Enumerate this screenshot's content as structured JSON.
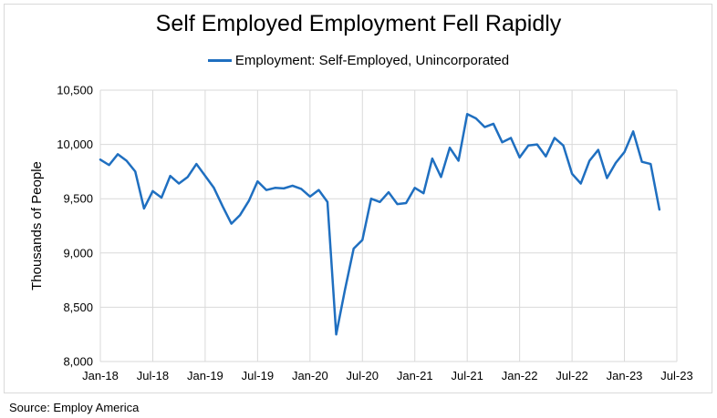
{
  "chart_data": {
    "type": "line",
    "title": "Self Employed Employment Fell Rapidly",
    "xlabel": "",
    "ylabel": "Thousands of People",
    "ylim": [
      8000,
      10500
    ],
    "yticks": [
      8000,
      8500,
      9000,
      9500,
      10000,
      10500
    ],
    "ytick_labels": [
      "8,000",
      "8,500",
      "9,000",
      "9,500",
      "10,000",
      "10,500"
    ],
    "xticks": [
      "Jan-18",
      "Jul-18",
      "Jan-19",
      "Jul-19",
      "Jan-20",
      "Jul-20",
      "Jan-21",
      "Jul-21",
      "Jan-22",
      "Jul-22",
      "Jan-23",
      "Jul-23"
    ],
    "xrange": [
      "2018-01",
      "2023-07"
    ],
    "grid": true,
    "legend_position": "top-center",
    "series": [
      {
        "name": "Employment: Self-Employed, Unincorporated",
        "color": "#1f6fc0",
        "x": [
          "2018-01",
          "2018-02",
          "2018-03",
          "2018-04",
          "2018-05",
          "2018-06",
          "2018-07",
          "2018-08",
          "2018-09",
          "2018-10",
          "2018-11",
          "2018-12",
          "2019-01",
          "2019-02",
          "2019-03",
          "2019-04",
          "2019-05",
          "2019-06",
          "2019-07",
          "2019-08",
          "2019-09",
          "2019-10",
          "2019-11",
          "2019-12",
          "2020-01",
          "2020-02",
          "2020-03",
          "2020-04",
          "2020-05",
          "2020-06",
          "2020-07",
          "2020-08",
          "2020-09",
          "2020-10",
          "2020-11",
          "2020-12",
          "2021-01",
          "2021-02",
          "2021-03",
          "2021-04",
          "2021-05",
          "2021-06",
          "2021-07",
          "2021-08",
          "2021-09",
          "2021-10",
          "2021-11",
          "2021-12",
          "2022-01",
          "2022-02",
          "2022-03",
          "2022-04",
          "2022-05",
          "2022-06",
          "2022-07",
          "2022-08",
          "2022-09",
          "2022-10",
          "2022-11",
          "2022-12",
          "2023-01",
          "2023-02",
          "2023-03",
          "2023-04",
          "2023-05"
        ],
        "values": [
          9860,
          9810,
          9910,
          9850,
          9750,
          9410,
          9570,
          9510,
          9710,
          9640,
          9700,
          9820,
          9710,
          9600,
          9430,
          9270,
          9350,
          9480,
          9660,
          9580,
          9600,
          9595,
          9620,
          9590,
          9520,
          9580,
          9470,
          8250,
          8660,
          9040,
          9120,
          9500,
          9470,
          9560,
          9450,
          9460,
          9600,
          9550,
          9870,
          9700,
          9970,
          9850,
          10280,
          10240,
          10160,
          10190,
          10020,
          10060,
          9880,
          9990,
          10000,
          9890,
          10060,
          9990,
          9730,
          9640,
          9850,
          9950,
          9690,
          9830,
          9930,
          10120,
          9840,
          9820,
          9400
        ]
      }
    ]
  },
  "source": "Source: Employ America"
}
